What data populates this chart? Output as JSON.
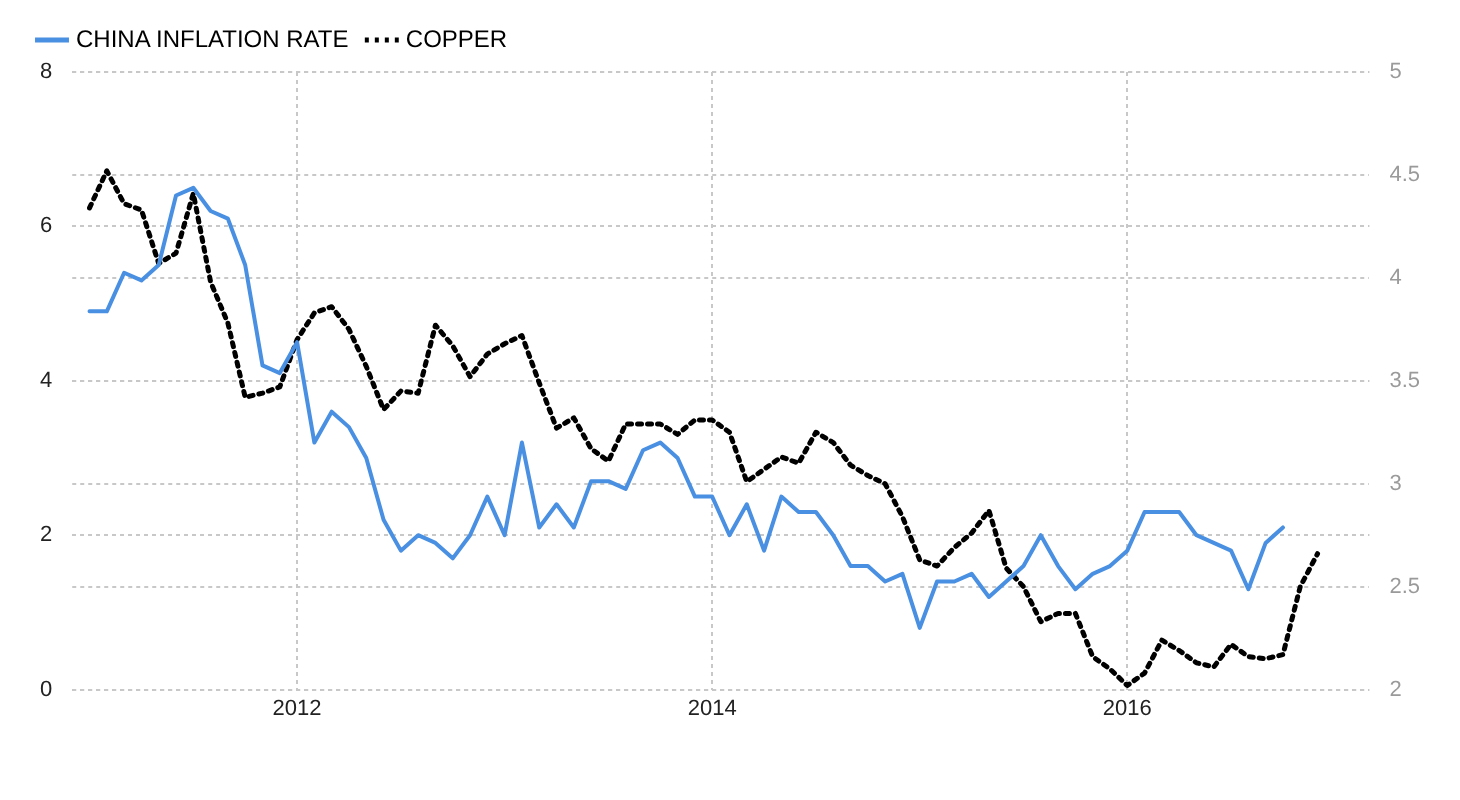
{
  "chart_data": {
    "type": "line",
    "x": [
      "2011-01",
      "2011-02",
      "2011-03",
      "2011-04",
      "2011-05",
      "2011-06",
      "2011-07",
      "2011-08",
      "2011-09",
      "2011-10",
      "2011-11",
      "2011-12",
      "2012-01",
      "2012-02",
      "2012-03",
      "2012-04",
      "2012-05",
      "2012-06",
      "2012-07",
      "2012-08",
      "2012-09",
      "2012-10",
      "2012-11",
      "2012-12",
      "2013-01",
      "2013-02",
      "2013-03",
      "2013-04",
      "2013-05",
      "2013-06",
      "2013-07",
      "2013-08",
      "2013-09",
      "2013-10",
      "2013-11",
      "2013-12",
      "2014-01",
      "2014-02",
      "2014-03",
      "2014-04",
      "2014-05",
      "2014-06",
      "2014-07",
      "2014-08",
      "2014-09",
      "2014-10",
      "2014-11",
      "2014-12",
      "2015-01",
      "2015-02",
      "2015-03",
      "2015-04",
      "2015-05",
      "2015-06",
      "2015-07",
      "2015-08",
      "2015-09",
      "2015-10",
      "2015-11",
      "2015-12",
      "2016-01",
      "2016-02",
      "2016-03",
      "2016-04",
      "2016-05",
      "2016-06",
      "2016-07",
      "2016-08",
      "2016-09",
      "2016-10",
      "2016-11",
      "2016-12"
    ],
    "series": [
      {
        "name": "CHINA INFLATION RATE",
        "color": "#4a90e2",
        "line_style": "solid",
        "values": [
          4.9,
          4.9,
          5.4,
          5.3,
          5.5,
          6.4,
          6.5,
          6.2,
          6.1,
          5.5,
          4.2,
          4.1,
          4.5,
          3.2,
          3.6,
          3.4,
          3.0,
          2.2,
          1.8,
          2.0,
          1.9,
          1.7,
          2.0,
          2.5,
          2.0,
          3.2,
          2.1,
          2.4,
          2.1,
          2.7,
          2.7,
          2.6,
          3.1,
          3.2,
          3.0,
          2.5,
          2.5,
          2.0,
          2.4,
          1.8,
          2.5,
          2.3,
          2.3,
          2.0,
          1.6,
          1.6,
          1.4,
          1.5,
          0.8,
          1.4,
          1.4,
          1.5,
          1.2,
          1.4,
          1.6,
          2.0,
          1.6,
          1.3,
          1.5,
          1.6,
          1.8,
          2.3,
          2.3,
          2.3,
          2.0,
          1.9,
          1.8,
          1.3,
          1.9,
          2.1,
          null,
          null
        ]
      },
      {
        "name": "COPPER",
        "color": "#000000",
        "line_style": "dotted",
        "axis": "y2",
        "values": [
          4.34,
          4.52,
          4.36,
          4.33,
          4.07,
          4.12,
          4.41,
          3.98,
          3.78,
          3.42,
          3.44,
          3.47,
          3.7,
          3.83,
          3.86,
          3.75,
          3.57,
          3.36,
          3.45,
          3.44,
          3.77,
          3.67,
          3.52,
          3.63,
          3.68,
          3.72,
          3.49,
          3.27,
          3.32,
          3.17,
          3.11,
          3.29,
          3.29,
          3.29,
          3.24,
          3.31,
          3.31,
          3.25,
          3.01,
          3.07,
          3.13,
          3.1,
          3.25,
          3.2,
          3.09,
          3.04,
          3.0,
          2.84,
          2.63,
          2.6,
          2.69,
          2.76,
          2.87,
          2.59,
          2.5,
          2.33,
          2.37,
          2.37,
          2.16,
          2.1,
          2.02,
          2.08,
          2.24,
          2.19,
          2.13,
          2.11,
          2.22,
          2.16,
          2.15,
          2.17,
          2.5,
          2.66
        ]
      }
    ],
    "xlim": [
      "2010-12",
      "2017-03"
    ],
    "xticks": [
      "2012",
      "2014",
      "2016"
    ],
    "ylim": [
      0,
      8
    ],
    "yticks": [
      0,
      2,
      4,
      6,
      8
    ],
    "y2lim": [
      2,
      5
    ],
    "y2ticks": [
      2,
      2.5,
      3,
      3.5,
      4,
      4.5,
      5
    ],
    "grid": true,
    "legend": "top left",
    "marker": "none"
  }
}
